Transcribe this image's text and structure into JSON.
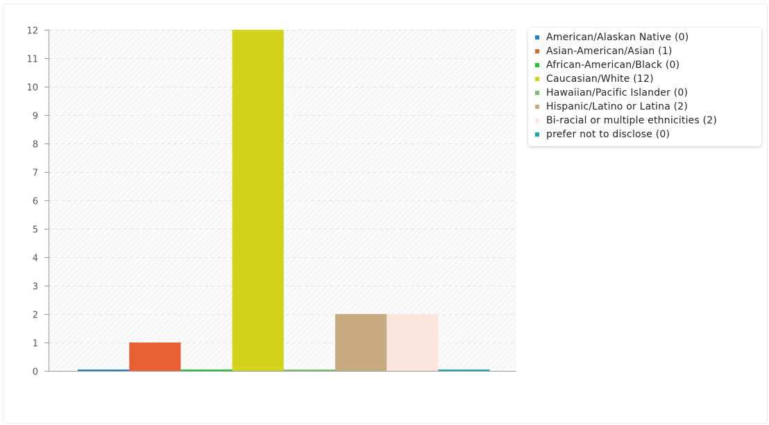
{
  "chart_data": {
    "type": "bar",
    "title": "",
    "xlabel": "",
    "ylabel": "",
    "ylim": [
      0,
      12
    ],
    "yticks": [
      "0",
      "1",
      "2",
      "3",
      "4",
      "5",
      "6",
      "7",
      "8",
      "9",
      "10",
      "11",
      "12"
    ],
    "grid": true,
    "legend_position": "right",
    "categories": [
      "American/Alaskan Native",
      "Asian-American/Asian",
      "African-American/Black",
      "Caucasian/White",
      "Hawaiian/Pacific Islander",
      "Hispanic/Latino or Latina",
      "Bi-racial or multiple ethnicities",
      "prefer not to disclose"
    ],
    "values": [
      0,
      1,
      0,
      12,
      0,
      2,
      2,
      0
    ],
    "colors": [
      "#1c7fd0",
      "#e86034",
      "#1ec82c",
      "#d3d31b",
      "#7fba78",
      "#c8aa80",
      "#fbe5dd",
      "#1aa8a8"
    ],
    "legend": [
      "American/Alaskan Native (0)",
      "Asian-American/Asian (1)",
      "African-American/Black (0)",
      "Caucasian/White (12)",
      "Hawaiian/Pacific Islander (0)",
      "Hispanic/Latino or Latina (2)",
      "Bi-racial or multiple ethnicities (2)",
      "prefer not to disclose (0)"
    ]
  }
}
